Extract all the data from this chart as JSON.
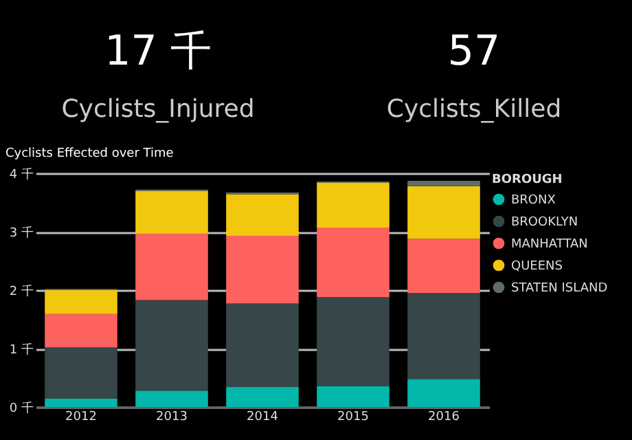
{
  "chart_data": [
    {
      "type": "other",
      "annotations": [
        "17 千",
        "Cyclists_Injured",
        "57",
        "Cyclists_Killed"
      ]
    },
    {
      "type": "bar",
      "title": "Cyclists Effected over Time",
      "legend_title": "BOROUGH",
      "categories": [
        "2012",
        "2013",
        "2014",
        "2015",
        "2016"
      ],
      "stacked": true,
      "ylim": [
        0,
        4
      ],
      "yticks": [
        {
          "value": 0,
          "label": "0 千"
        },
        {
          "value": 1,
          "label": "1 千"
        },
        {
          "value": 2,
          "label": "2 千"
        },
        {
          "value": 3,
          "label": "3 千"
        },
        {
          "value": 4,
          "label": "4 千"
        }
      ],
      "grid": "y",
      "legend": "top right",
      "series": [
        {
          "name": "BRONX",
          "color": "#01b8aa",
          "values": [
            0.14,
            0.28,
            0.34,
            0.36,
            0.48
          ]
        },
        {
          "name": "BROOKLYN",
          "color": "#374649",
          "values": [
            0.88,
            1.55,
            1.43,
            1.52,
            1.47
          ]
        },
        {
          "name": "MANHATTAN",
          "color": "#fd625e",
          "values": [
            0.57,
            1.14,
            1.16,
            1.19,
            0.93
          ]
        },
        {
          "name": "QUEENS",
          "color": "#f2c80f",
          "values": [
            0.41,
            0.73,
            0.71,
            0.77,
            0.9
          ]
        },
        {
          "name": "STATEN ISLAND",
          "color": "#5f6b6d",
          "values": [
            0.02,
            0.02,
            0.03,
            0.02,
            0.09
          ]
        }
      ]
    }
  ]
}
